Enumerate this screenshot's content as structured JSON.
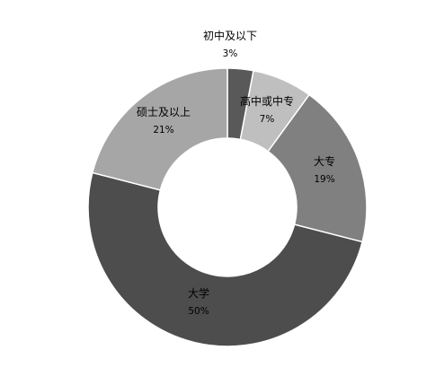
{
  "chart_data": {
    "type": "pie",
    "variant": "donut",
    "categories": [
      "初中及以下",
      "高中或中专",
      "大专",
      "大学",
      "硕士及以上"
    ],
    "values": [
      3,
      7,
      19,
      50,
      21
    ],
    "labels": [
      "3%",
      "7%",
      "19%",
      "50%",
      "21%"
    ],
    "colors": [
      "#595959",
      "#bfbfbf",
      "#808080",
      "#4d4d4d",
      "#a6a6a6"
    ],
    "start_angle_deg": 0,
    "direction": "clockwise",
    "legend": "none"
  }
}
